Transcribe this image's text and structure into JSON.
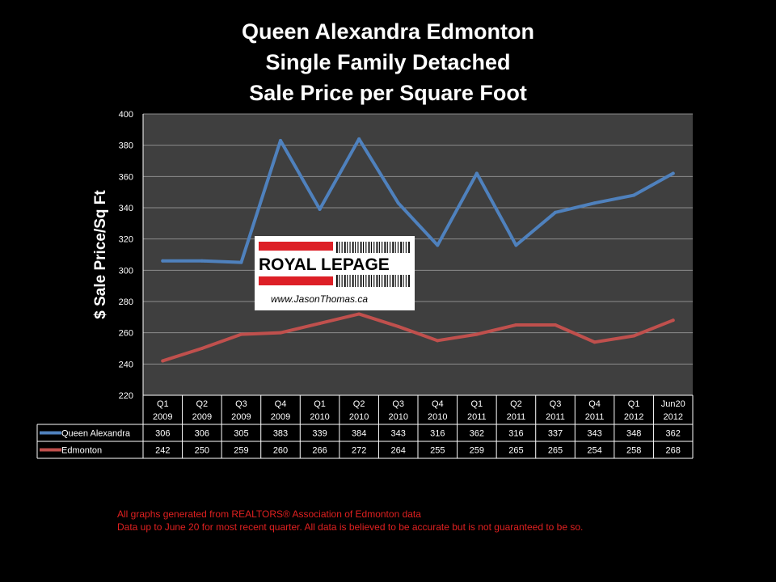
{
  "chart_data": {
    "type": "line",
    "title": [
      "Queen Alexandra Edmonton",
      "Single Family Detached",
      "Sale Price per Square Foot"
    ],
    "ylabel": "$ Sale Price/Sq Ft",
    "ylim": [
      220,
      400
    ],
    "yticks": [
      220,
      240,
      260,
      280,
      300,
      320,
      340,
      360,
      380,
      400
    ],
    "grid": true,
    "categories": [
      [
        "Q1",
        "2009"
      ],
      [
        "Q2",
        "2009"
      ],
      [
        "Q3",
        "2009"
      ],
      [
        "Q4",
        "2009"
      ],
      [
        "Q1",
        "2010"
      ],
      [
        "Q2",
        "2010"
      ],
      [
        "Q3",
        "2010"
      ],
      [
        "Q4",
        "2010"
      ],
      [
        "Q1",
        "2011"
      ],
      [
        "Q2",
        "2011"
      ],
      [
        "Q3",
        "2011"
      ],
      [
        "Q4",
        "2011"
      ],
      [
        "Q1",
        "2012"
      ],
      [
        "Jun20",
        "2012"
      ]
    ],
    "series": [
      {
        "name": "Queen Alexandra",
        "color": "#4f81bd",
        "values": [
          306,
          306,
          305,
          383,
          339,
          384,
          343,
          316,
          362,
          316,
          337,
          343,
          348,
          362
        ]
      },
      {
        "name": "Edmonton",
        "color": "#c0504d",
        "values": [
          242,
          250,
          259,
          260,
          266,
          272,
          264,
          255,
          259,
          265,
          265,
          254,
          258,
          268
        ]
      }
    ]
  },
  "logo": {
    "brand": "ROYAL LEPAGE",
    "website": "www.JasonThomas.ca"
  },
  "footer": {
    "line1": "All graphs generated from REALTORS® Association of Edmonton data",
    "line2": "Data up to June 20 for most recent quarter. All data is believed to be accurate but is not guaranteed to be so."
  }
}
